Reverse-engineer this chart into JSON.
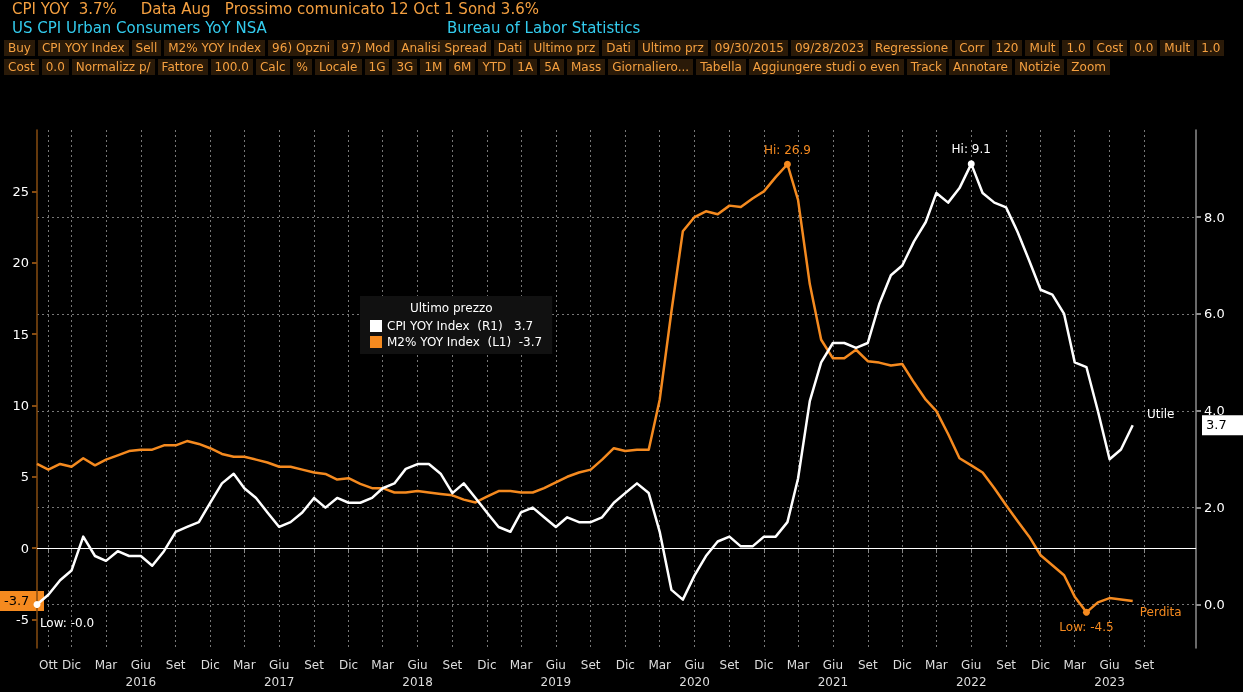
{
  "chart_data": {
    "type": "line",
    "title": "US CPI Urban Consumers YoY NSA",
    "subtitle": "Bureau of Labor Statistics",
    "legend_title": "Ultimo prezzo",
    "annotations": [
      "CPI YOY  3.7%     Data Aug   Prossimo comunicato 12 Oct 1 Sond 3.6%",
      "Buy",
      "CPI YOY Index",
      "Sell",
      "M2% YOY Index",
      "96) Opzni",
      "97) Mod",
      "Analisi Spread",
      "Dati",
      "Ultimo prz",
      "Dati",
      "Ultimo prz",
      "09/30/2015",
      "09/28/2023",
      "Regressione",
      "Corr",
      "120",
      "Mult",
      "1.0",
      "Cost",
      "0.0",
      "Mult",
      "1.0",
      "Cost",
      "0.0",
      "Normalizz p/",
      "Fattore",
      "100.0",
      "Calc",
      "%",
      "Locale",
      "1G",
      "3G",
      "1M",
      "6M",
      "YTD",
      "1A",
      "5A",
      "Mass",
      "Giornaliero...",
      "Tabella",
      "Aggiungere studi o even",
      "Track",
      "Annotare",
      "Notizie",
      "Zoom",
      "3.7",
      "-3.7"
    ],
    "x": [
      "2015-09",
      "2015-10",
      "2015-11",
      "2015-12",
      "2016-01",
      "2016-02",
      "2016-03",
      "2016-04",
      "2016-05",
      "2016-06",
      "2016-07",
      "2016-08",
      "2016-09",
      "2016-10",
      "2016-11",
      "2016-12",
      "2017-01",
      "2017-02",
      "2017-03",
      "2017-04",
      "2017-05",
      "2017-06",
      "2017-07",
      "2017-08",
      "2017-09",
      "2017-10",
      "2017-11",
      "2017-12",
      "2018-01",
      "2018-02",
      "2018-03",
      "2018-04",
      "2018-05",
      "2018-06",
      "2018-07",
      "2018-08",
      "2018-09",
      "2018-10",
      "2018-11",
      "2018-12",
      "2019-01",
      "2019-02",
      "2019-03",
      "2019-04",
      "2019-05",
      "2019-06",
      "2019-07",
      "2019-08",
      "2019-09",
      "2019-10",
      "2019-11",
      "2019-12",
      "2020-01",
      "2020-02",
      "2020-03",
      "2020-04",
      "2020-05",
      "2020-06",
      "2020-07",
      "2020-08",
      "2020-09",
      "2020-10",
      "2020-11",
      "2020-12",
      "2021-01",
      "2021-02",
      "2021-03",
      "2021-04",
      "2021-05",
      "2021-06",
      "2021-07",
      "2021-08",
      "2021-09",
      "2021-10",
      "2021-11",
      "2021-12",
      "2022-01",
      "2022-02",
      "2022-03",
      "2022-04",
      "2022-05",
      "2022-06",
      "2022-07",
      "2022-08",
      "2022-09",
      "2022-10",
      "2022-11",
      "2022-12",
      "2023-01",
      "2023-02",
      "2023-03",
      "2023-04",
      "2023-05",
      "2023-06",
      "2023-07",
      "2023-08"
    ],
    "series": [
      {
        "name": "CPI YOY Index  (R1)   3.7",
        "color": "#ffffff",
        "axis": "y2",
        "values": [
          0.0,
          0.2,
          0.5,
          0.7,
          1.4,
          1.0,
          0.9,
          1.1,
          1.0,
          1.0,
          0.8,
          1.1,
          1.5,
          1.6,
          1.7,
          2.1,
          2.5,
          2.7,
          2.4,
          2.2,
          1.9,
          1.6,
          1.7,
          1.9,
          2.2,
          2.0,
          2.2,
          2.1,
          2.1,
          2.2,
          2.4,
          2.5,
          2.8,
          2.9,
          2.9,
          2.7,
          2.3,
          2.5,
          2.2,
          1.9,
          1.6,
          1.5,
          1.9,
          2.0,
          1.8,
          1.6,
          1.8,
          1.7,
          1.7,
          1.8,
          2.1,
          2.3,
          2.5,
          2.3,
          1.5,
          0.3,
          0.1,
          0.6,
          1.0,
          1.3,
          1.4,
          1.2,
          1.2,
          1.4,
          1.4,
          1.7,
          2.6,
          4.2,
          5.0,
          5.4,
          5.4,
          5.3,
          5.4,
          6.2,
          6.8,
          7.0,
          7.5,
          7.9,
          8.5,
          8.3,
          8.6,
          9.1,
          8.5,
          8.3,
          8.2,
          7.7,
          7.1,
          6.5,
          6.4,
          6.0,
          5.0,
          4.9,
          4.0,
          3.0,
          3.2,
          3.7
        ],
        "value_labels": [
          "Low: -0.0",
          null,
          null,
          null,
          null,
          null,
          null,
          null,
          null,
          null,
          null,
          null,
          null,
          null,
          null,
          null,
          null,
          null,
          null,
          null,
          null,
          null,
          null,
          null,
          null,
          null,
          null,
          null,
          null,
          null,
          null,
          null,
          null,
          null,
          null,
          null,
          null,
          null,
          null,
          null,
          null,
          null,
          null,
          null,
          null,
          null,
          null,
          null,
          null,
          null,
          null,
          null,
          null,
          null,
          null,
          null,
          null,
          null,
          null,
          null,
          null,
          null,
          null,
          null,
          null,
          null,
          null,
          null,
          null,
          null,
          null,
          null,
          null,
          null,
          null,
          null,
          null,
          null,
          null,
          null,
          null,
          "Hi: 9.1",
          null,
          null,
          null,
          null,
          null,
          null,
          null,
          null,
          null,
          null,
          null,
          null,
          null,
          "Utile"
        ]
      },
      {
        "name": "M2% YOY Index  (L1)  -3.7",
        "color": "#f58a1f",
        "axis": "y",
        "values": [
          5.9,
          5.5,
          5.9,
          5.7,
          6.3,
          5.8,
          6.2,
          6.5,
          6.8,
          6.9,
          6.9,
          7.2,
          7.2,
          7.5,
          7.3,
          7.0,
          6.6,
          6.4,
          6.4,
          6.2,
          6.0,
          5.7,
          5.7,
          5.5,
          5.3,
          5.2,
          4.8,
          4.9,
          4.5,
          4.2,
          4.2,
          3.9,
          3.9,
          4.0,
          3.9,
          3.8,
          3.7,
          3.4,
          3.2,
          3.6,
          4.0,
          4.0,
          3.9,
          3.9,
          4.2,
          4.6,
          5.0,
          5.3,
          5.5,
          6.2,
          7.0,
          6.8,
          6.9,
          6.9,
          10.4,
          16.6,
          22.2,
          23.2,
          23.6,
          23.4,
          24.0,
          23.9,
          24.5,
          25.0,
          26.0,
          26.9,
          24.4,
          18.5,
          14.6,
          13.3,
          13.3,
          13.9,
          13.1,
          13.0,
          12.8,
          12.9,
          11.6,
          10.4,
          9.6,
          8.0,
          6.3,
          5.8,
          5.3,
          4.2,
          3.0,
          1.9,
          0.8,
          -0.5,
          -1.2,
          -1.9,
          -3.4,
          -4.5,
          -3.8,
          -3.5,
          -3.6,
          -3.7
        ],
        "value_labels": [
          null,
          null,
          null,
          null,
          null,
          null,
          null,
          null,
          null,
          null,
          null,
          null,
          null,
          null,
          null,
          null,
          null,
          null,
          null,
          null,
          null,
          null,
          null,
          null,
          null,
          null,
          null,
          null,
          null,
          null,
          null,
          null,
          null,
          null,
          null,
          null,
          null,
          null,
          null,
          null,
          null,
          null,
          null,
          null,
          null,
          null,
          null,
          null,
          null,
          null,
          null,
          null,
          null,
          null,
          null,
          null,
          null,
          null,
          null,
          null,
          null,
          null,
          null,
          null,
          null,
          "Hi: 26.9",
          null,
          null,
          null,
          null,
          null,
          null,
          null,
          null,
          null,
          null,
          null,
          null,
          null,
          null,
          null,
          null,
          null,
          null,
          null,
          null,
          null,
          null,
          null,
          null,
          null,
          "Low: -4.5",
          null,
          null,
          null,
          "Perdita"
        ]
      }
    ],
    "xlim": [
      "2015-09",
      "2024-01-15"
    ],
    "xticks": [
      {
        "value": "2015-10",
        "label": "Ott"
      },
      {
        "value": "2015-12",
        "label": "Dic"
      },
      {
        "value": "2016-03",
        "label": "Mar"
      },
      {
        "value": "2016-06",
        "label": "Giu\n2016"
      },
      {
        "value": "2016-09",
        "label": "Set"
      },
      {
        "value": "2016-12",
        "label": "Dic"
      },
      {
        "value": "2017-03",
        "label": "Mar"
      },
      {
        "value": "2017-06",
        "label": "Giu\n2017"
      },
      {
        "value": "2017-09",
        "label": "Set"
      },
      {
        "value": "2017-12",
        "label": "Dic"
      },
      {
        "value": "2018-03",
        "label": "Mar"
      },
      {
        "value": "2018-06",
        "label": "Giu\n2018"
      },
      {
        "value": "2018-09",
        "label": "Set"
      },
      {
        "value": "2018-12",
        "label": "Dic"
      },
      {
        "value": "2019-03",
        "label": "Mar"
      },
      {
        "value": "2019-06",
        "label": "Giu\n2019"
      },
      {
        "value": "2019-09",
        "label": "Set"
      },
      {
        "value": "2019-12",
        "label": "Dic"
      },
      {
        "value": "2020-03",
        "label": "Mar"
      },
      {
        "value": "2020-06",
        "label": "Giu\n2020"
      },
      {
        "value": "2020-09",
        "label": "Set"
      },
      {
        "value": "2020-12",
        "label": "Dic"
      },
      {
        "value": "2021-03",
        "label": "Mar"
      },
      {
        "value": "2021-06",
        "label": "Giu\n2021"
      },
      {
        "value": "2021-09",
        "label": "Set"
      },
      {
        "value": "2021-12",
        "label": "Dic"
      },
      {
        "value": "2022-03",
        "label": "Mar"
      },
      {
        "value": "2022-06",
        "label": "Giu\n2022"
      },
      {
        "value": "2022-09",
        "label": "Set"
      },
      {
        "value": "2022-12",
        "label": "Dic"
      },
      {
        "value": "2023-03",
        "label": "Mar"
      },
      {
        "value": "2023-06",
        "label": "Giu\n2023"
      },
      {
        "value": "2023-09",
        "label": "Set"
      }
    ],
    "ylim": [
      -7,
      29.3
    ],
    "yticks": [
      -5,
      0,
      5,
      10,
      15,
      20,
      25
    ],
    "y2lim": [
      -0.9,
      9.8
    ],
    "y2ticks": [
      {
        "value": 0,
        "label": "0.0"
      },
      {
        "value": 2,
        "label": "2.0"
      },
      {
        "value": 4,
        "label": "4.0"
      },
      {
        "value": 6,
        "label": "6.0"
      },
      {
        "value": 8,
        "label": "8.0"
      }
    ],
    "ref_lines": [
      {
        "axis": "y",
        "value": 0,
        "color": "#ffffff"
      }
    ],
    "grid": true,
    "legend": "top left"
  }
}
